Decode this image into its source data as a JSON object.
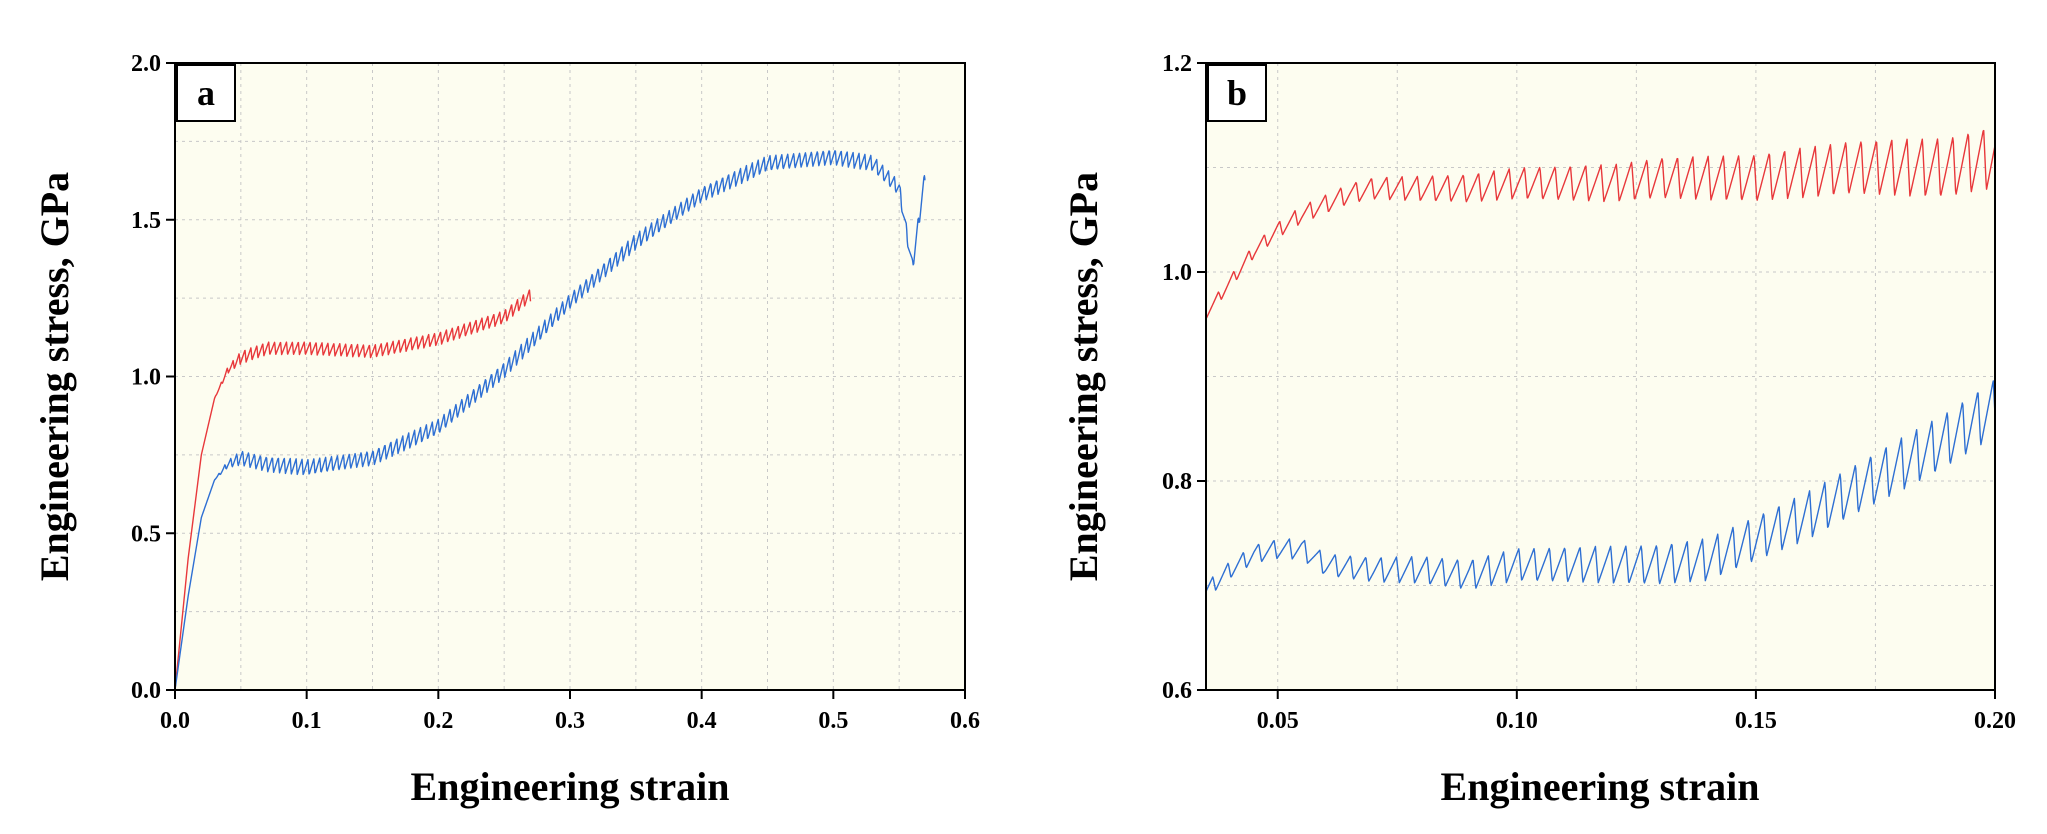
{
  "colors": {
    "background": "#fdfdf0",
    "grid": "#c8c8c8",
    "series_red": "#e8383b",
    "series_blue": "#2e6fd3"
  },
  "chart_data": [
    {
      "type": "line",
      "panel_label": "a",
      "xlabel": "Engineering strain",
      "ylabel": "Engineering stress, GPa",
      "xlim": [
        0.0,
        0.6
      ],
      "ylim": [
        0.0,
        2.0
      ],
      "xticks": [
        "0.0",
        "0.1",
        "0.2",
        "0.3",
        "0.4",
        "0.5",
        "0.6"
      ],
      "yticks": [
        "0.0",
        "0.5",
        "1.0",
        "1.5",
        "2.0"
      ],
      "grid": true,
      "series": [
        {
          "color": "#e8383b",
          "x": [
            0.0,
            0.01,
            0.02,
            0.03,
            0.04,
            0.05,
            0.07,
            0.1,
            0.15,
            0.2,
            0.25,
            0.27
          ],
          "y": [
            0.0,
            0.42,
            0.75,
            0.93,
            1.02,
            1.06,
            1.09,
            1.09,
            1.08,
            1.12,
            1.19,
            1.26
          ],
          "serration_amplitude": 0.04
        },
        {
          "color": "#2e6fd3",
          "x": [
            0.0,
            0.01,
            0.02,
            0.03,
            0.04,
            0.05,
            0.07,
            0.1,
            0.15,
            0.2,
            0.25,
            0.3,
            0.35,
            0.4,
            0.45,
            0.5,
            0.53,
            0.55,
            0.56,
            0.57
          ],
          "y": [
            0.0,
            0.3,
            0.55,
            0.67,
            0.72,
            0.74,
            0.72,
            0.71,
            0.74,
            0.84,
            1.02,
            1.24,
            1.43,
            1.58,
            1.68,
            1.7,
            1.68,
            1.6,
            1.35,
            1.65
          ],
          "serration_amplitude": 0.05
        }
      ]
    },
    {
      "type": "line",
      "panel_label": "b",
      "xlabel": "Engineering strain",
      "ylabel": "Engineering stress, GPa",
      "xlim": [
        0.035,
        0.2
      ],
      "ylim": [
        0.6,
        1.2
      ],
      "xticks": [
        "0.05",
        "0.10",
        "0.15",
        "0.20"
      ],
      "yticks": [
        "0.6",
        "0.8",
        "1.0",
        "1.2"
      ],
      "grid": true,
      "series": [
        {
          "color": "#e8383b",
          "x": [
            0.035,
            0.04,
            0.045,
            0.05,
            0.055,
            0.06,
            0.065,
            0.07,
            0.08,
            0.09,
            0.1,
            0.11,
            0.12,
            0.13,
            0.14,
            0.15,
            0.16,
            0.17,
            0.18,
            0.19,
            0.2
          ],
          "y": [
            0.96,
            0.99,
            1.02,
            1.04,
            1.055,
            1.065,
            1.075,
            1.08,
            1.08,
            1.08,
            1.085,
            1.085,
            1.085,
            1.09,
            1.09,
            1.09,
            1.095,
            1.1,
            1.1,
            1.1,
            1.11
          ],
          "serration_amplitude_start": 0.01,
          "serration_amplitude_end": 0.06
        },
        {
          "color": "#2e6fd3",
          "x": [
            0.035,
            0.04,
            0.045,
            0.05,
            0.055,
            0.06,
            0.07,
            0.08,
            0.09,
            0.1,
            0.11,
            0.12,
            0.13,
            0.14,
            0.15,
            0.16,
            0.17,
            0.18,
            0.19,
            0.2
          ],
          "y": [
            0.695,
            0.715,
            0.73,
            0.735,
            0.735,
            0.72,
            0.715,
            0.715,
            0.71,
            0.72,
            0.72,
            0.72,
            0.72,
            0.725,
            0.745,
            0.765,
            0.79,
            0.815,
            0.84,
            0.87
          ],
          "serration_amplitude_start": 0.015,
          "serration_amplitude_end": 0.055
        }
      ]
    }
  ]
}
